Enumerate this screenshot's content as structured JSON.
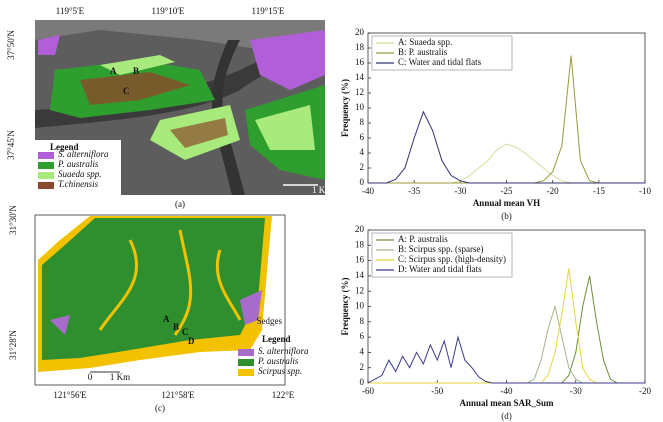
{
  "chart_data": [
    {
      "type": "line",
      "panel": "(b)",
      "x_label": "Annual mean VH",
      "y_label": "Frequency (%)",
      "x": [
        -40,
        -39,
        -38,
        -37,
        -36,
        -35,
        -34,
        -33,
        -32,
        -31,
        -30,
        -29,
        -28,
        -27,
        -26,
        -25,
        -24,
        -23,
        -22,
        -21,
        -20,
        -19,
        -18,
        -17,
        -16,
        -15,
        -14,
        -13,
        -12,
        -11,
        -10
      ],
      "xlim": [
        -40,
        -10
      ],
      "xticks": [
        -40,
        -35,
        -30,
        -25,
        -20,
        -15,
        -10
      ],
      "ylim": [
        0,
        20
      ],
      "yticks": [
        0,
        2,
        4,
        6,
        8,
        10,
        12,
        14,
        16,
        18,
        20
      ],
      "legend": "upper left",
      "series": [
        {
          "name": "A: Suaeda spp.",
          "color": "#d8dc9a",
          "values": [
            0,
            0,
            0,
            0,
            0,
            0,
            0,
            0,
            0,
            0,
            0.3,
            1,
            2,
            3,
            4.5,
            5.2,
            4.8,
            4,
            3,
            2,
            1,
            0.3,
            0,
            0,
            0,
            0,
            0,
            0,
            0,
            0,
            0
          ]
        },
        {
          "name": "B: P. australis",
          "color": "#9a9a3a",
          "values": [
            0,
            0,
            0,
            0,
            0,
            0,
            0,
            0,
            0,
            0,
            0,
            0,
            0,
            0,
            0,
            0,
            0,
            0,
            0,
            0.3,
            1.5,
            5,
            17,
            3,
            0.3,
            0,
            0,
            0,
            0,
            0,
            0
          ]
        },
        {
          "name": "C: Water and tidal flats",
          "color": "#33337a",
          "values": [
            0,
            0,
            0,
            0.5,
            2,
            6,
            9.5,
            7,
            3,
            1,
            0.3,
            0,
            0,
            0,
            0,
            0,
            0,
            0,
            0,
            0,
            0,
            0,
            0,
            0,
            0,
            0,
            0,
            0,
            0,
            0,
            0
          ]
        }
      ]
    },
    {
      "type": "line",
      "panel": "(d)",
      "x_label": "Annual mean SAR_Sum",
      "y_label": "Frequency (%)",
      "x": [
        -60,
        -59,
        -58,
        -57,
        -56,
        -55,
        -54,
        -53,
        -52,
        -51,
        -50,
        -49,
        -48,
        -47,
        -46,
        -45,
        -44,
        -43,
        -42,
        -41,
        -40,
        -39,
        -38,
        -37,
        -36,
        -35,
        -34,
        -33,
        -32,
        -31,
        -30,
        -29,
        -28,
        -27,
        -26,
        -25,
        -24,
        -23,
        -22,
        -21,
        -20
      ],
      "xlim": [
        -60,
        -20
      ],
      "xticks": [
        -60,
        -50,
        -40,
        -30,
        -20
      ],
      "ylim": [
        0,
        20
      ],
      "yticks": [
        0,
        2,
        4,
        6,
        8,
        10,
        12,
        14,
        16,
        18,
        20
      ],
      "legend": "upper left",
      "series": [
        {
          "name": "A: P. australis",
          "color": "#6f8f3a",
          "values": [
            0,
            0,
            0,
            0,
            0,
            0,
            0,
            0,
            0,
            0,
            0,
            0,
            0,
            0,
            0,
            0,
            0,
            0,
            0,
            0,
            0,
            0,
            0,
            0,
            0,
            0,
            0,
            0,
            0,
            1,
            4,
            10,
            14,
            8,
            3,
            0.5,
            0,
            0,
            0,
            0,
            0
          ]
        },
        {
          "name": "B: Scirpus spp. (sparse)",
          "color": "#a8b48a",
          "values": [
            0,
            0,
            0,
            0,
            0,
            0,
            0,
            0,
            0,
            0,
            0,
            0,
            0,
            0,
            0,
            0,
            0,
            0,
            0,
            0,
            0,
            0,
            0,
            0,
            0.5,
            3,
            7,
            10,
            6,
            2,
            0.5,
            0,
            0,
            0,
            0,
            0,
            0,
            0,
            0,
            0,
            0
          ]
        },
        {
          "name": "C: Scirpus spp. (high-density)",
          "color": "#e6d640",
          "values": [
            0,
            0,
            0,
            0,
            0,
            0,
            0,
            0,
            0,
            0,
            0,
            0,
            0,
            0,
            0,
            0,
            0,
            0,
            0,
            0,
            0,
            0,
            0,
            0,
            0,
            0,
            1,
            4,
            9,
            15,
            8,
            2,
            0.5,
            0,
            0,
            0,
            0,
            0,
            0,
            0,
            0
          ]
        },
        {
          "name": "D: Water and tidal flats",
          "color": "#3a3a8a",
          "values": [
            0,
            0.5,
            1,
            3,
            1.5,
            3.5,
            2,
            4,
            2.5,
            5,
            3,
            5.5,
            2,
            6,
            3,
            2,
            0.8,
            0.2,
            0,
            0,
            0,
            0,
            0,
            0,
            0,
            0,
            0,
            0,
            0,
            0,
            0,
            0,
            0,
            0,
            0,
            0,
            0,
            0,
            0,
            0,
            0
          ]
        }
      ]
    }
  ],
  "maps": [
    {
      "panel": "(a)",
      "top_ticks": [
        "119°5'E",
        "119°10'E",
        "119°15'E"
      ],
      "left_ticks": [
        "37°50'N",
        "37°45'N"
      ],
      "legend_title": "Legend",
      "legend": [
        {
          "label": "S. alterniflora",
          "color": "#b15fd8"
        },
        {
          "label": "P. australis",
          "color": "#2e9e2e"
        },
        {
          "label": "Suaeda spp.",
          "color": "#a8ea7c"
        },
        {
          "label": "T.chinensis",
          "color": "#8b4a2b"
        }
      ],
      "points": [
        "A",
        "B",
        "C"
      ],
      "scale": "1 Km"
    },
    {
      "panel": "(c)",
      "bottom_ticks": [
        "121°56'E",
        "121°58'E",
        "122°E"
      ],
      "left_ticks": [
        "31°30'N",
        "31°28'N"
      ],
      "note": "Sedges",
      "legend_title": "Legend",
      "legend": [
        {
          "label": "S. alterniflora",
          "color": "#a76bcb"
        },
        {
          "label": "P. australis",
          "color": "#2f8f2f"
        },
        {
          "label": "Scirpus spp.",
          "color": "#f2c200"
        }
      ],
      "points": [
        "A",
        "B",
        "C",
        "D"
      ],
      "scale": [
        "0",
        "1 Km"
      ]
    }
  ]
}
